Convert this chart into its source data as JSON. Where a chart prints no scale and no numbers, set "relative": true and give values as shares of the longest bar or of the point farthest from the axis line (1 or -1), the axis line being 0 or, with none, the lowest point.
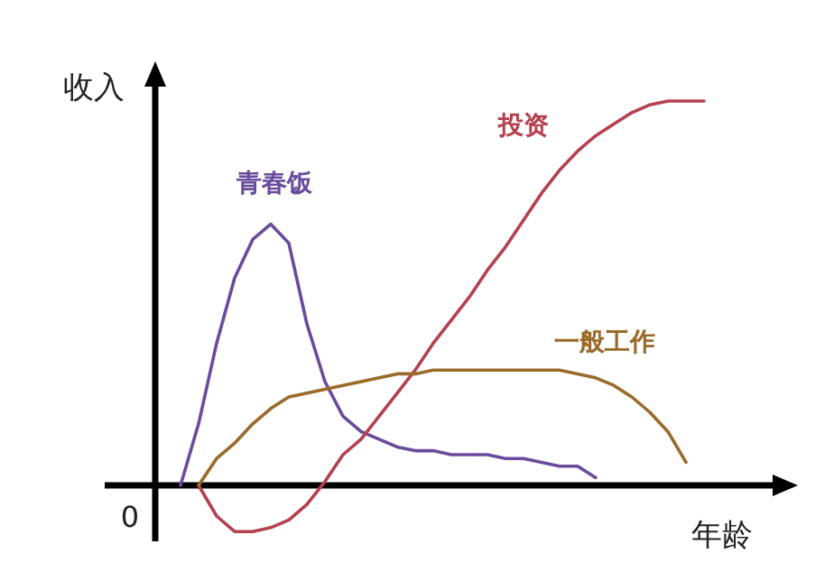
{
  "chart_data": {
    "type": "line",
    "relative": true,
    "xlabel": "年龄",
    "ylabel": "收入",
    "annotations": [
      "0"
    ],
    "legend": false,
    "marker": "none",
    "line_style": "solid",
    "categories": [
      null,
      null,
      null,
      null,
      null,
      null,
      null,
      null,
      null,
      null,
      null,
      null,
      null,
      null,
      null,
      null,
      null,
      null,
      null,
      null,
      null,
      null,
      null,
      null,
      null,
      null,
      null,
      null,
      null,
      null
    ],
    "series": [
      {
        "name": "青春饭",
        "color": "#6a4c9c",
        "values": [
          0,
          0.16,
          0.37,
          0.54,
          0.64,
          0.68,
          0.63,
          0.42,
          0.27,
          0.18,
          0.14,
          0.12,
          0.1,
          0.09,
          0.09,
          0.08,
          0.08,
          0.08,
          0.07,
          0.07,
          0.06,
          0.05,
          0.05,
          0.02,
          null,
          null,
          null,
          null,
          null,
          null
        ]
      },
      {
        "name": "投资",
        "color": "#b5414f",
        "values": [
          null,
          0,
          -0.08,
          -0.12,
          -0.12,
          -0.11,
          -0.09,
          -0.05,
          0.01,
          0.08,
          0.12,
          0.18,
          0.24,
          0.3,
          0.37,
          0.43,
          0.49,
          0.56,
          0.62,
          0.69,
          0.76,
          0.82,
          0.87,
          0.91,
          0.94,
          0.97,
          0.99,
          1.0,
          1.0,
          1.0
        ]
      },
      {
        "name": "一般工作",
        "color": "#9a6a2a",
        "values": [
          null,
          0,
          0.07,
          0.11,
          0.16,
          0.2,
          0.23,
          0.24,
          0.25,
          0.26,
          0.27,
          0.28,
          0.29,
          0.29,
          0.3,
          0.3,
          0.3,
          0.3,
          0.3,
          0.3,
          0.3,
          0.3,
          0.29,
          0.28,
          0.26,
          0.23,
          0.19,
          0.14,
          0.06,
          null
        ]
      }
    ]
  }
}
